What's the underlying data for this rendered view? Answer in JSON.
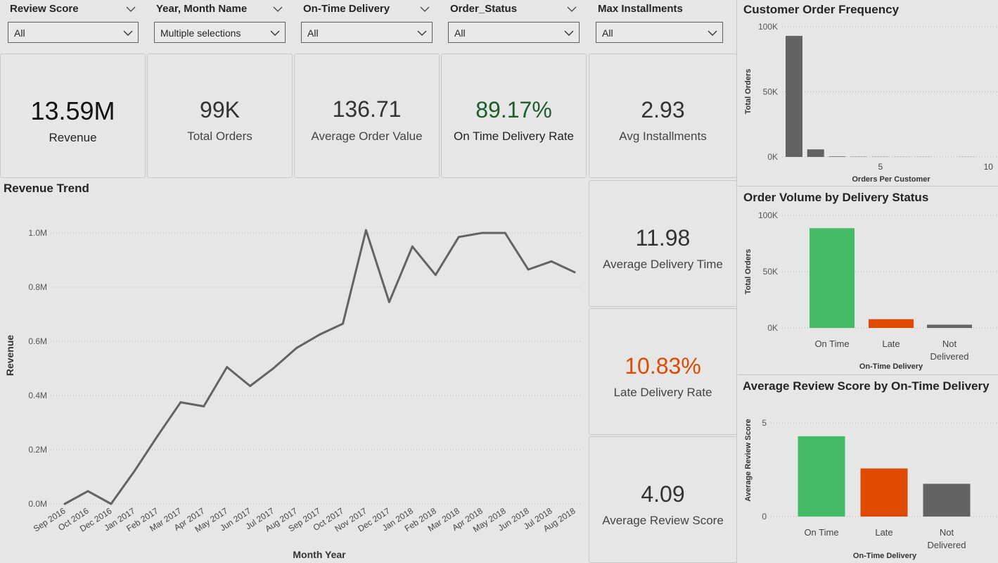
{
  "slicers": [
    {
      "title": "Review Score",
      "value": "All"
    },
    {
      "title": "Year, Month Name",
      "value": "Multiple selections"
    },
    {
      "title": "On-Time Delivery",
      "value": "All"
    },
    {
      "title": "Order_Status",
      "value": "All"
    },
    {
      "title": "Max Installments",
      "value": "All"
    }
  ],
  "kpis": {
    "revenue": {
      "value": "13.59M",
      "label": "Revenue"
    },
    "total_orders": {
      "value": "99K",
      "label": "Total Orders"
    },
    "aov": {
      "value": "136.71",
      "label": "Average Order Value"
    },
    "on_time_rate": {
      "value": "89.17%",
      "label": "On Time Delivery Rate",
      "color": "#1e5d2a"
    },
    "avg_installments": {
      "value": "2.93",
      "label": "Avg Installments"
    },
    "avg_delivery_time": {
      "value": "11.98",
      "label": "Average Delivery Time"
    },
    "late_rate": {
      "value": "10.83%",
      "label": "Late Delivery Rate",
      "color": "#e04a00"
    },
    "avg_review": {
      "value": "4.09",
      "label": "Average Review Score"
    }
  },
  "revenue_trend": {
    "title": "Revenue Trend",
    "chart_data": {
      "type": "line",
      "title": "Revenue Trend",
      "xlabel": "Month Year",
      "ylabel": "Revenue",
      "categories": [
        "Sep 2016",
        "Oct 2016",
        "Dec 2016",
        "Jan 2017",
        "Feb 2017",
        "Mar 2017",
        "Apr 2017",
        "May 2017",
        "Jun 2017",
        "Jul 2017",
        "Aug 2017",
        "Sep 2017",
        "Oct 2017",
        "Nov 2017",
        "Dec 2017",
        "Jan 2018",
        "Feb 2018",
        "Mar 2018",
        "Apr 2018",
        "May 2018",
        "Jun 2018",
        "Jul 2018",
        "Aug 2018"
      ],
      "values": [
        0.0,
        0.047,
        0.0,
        0.12,
        0.25,
        0.375,
        0.36,
        0.505,
        0.435,
        0.5,
        0.575,
        0.625,
        0.665,
        1.01,
        0.745,
        0.95,
        0.845,
        0.985,
        1.0,
        1.0,
        0.865,
        0.895,
        0.855
      ],
      "yticks": [
        "0.0M",
        "0.2M",
        "0.4M",
        "0.6M",
        "0.8M",
        "1.0M"
      ],
      "ylim": [
        0,
        1.0
      ],
      "grid": true,
      "color": "#636363"
    }
  },
  "customer_freq": {
    "title": "Customer Order Frequency",
    "chart_data": {
      "type": "bar",
      "title": "Customer Order Frequency",
      "xlabel": "Orders Per Customer",
      "ylabel": "Total Orders",
      "x": [
        1,
        2,
        3,
        4,
        5,
        6,
        7,
        9
      ],
      "values": [
        93000,
        5800,
        400,
        200,
        150,
        100,
        100,
        100
      ],
      "xticks": [
        "5",
        "10"
      ],
      "yticks": [
        "0K",
        "50K",
        "100K"
      ],
      "ylim": [
        0,
        100000
      ],
      "color": "#636363"
    }
  },
  "delivery_status": {
    "title": "Order Volume by Delivery Status",
    "chart_data": {
      "type": "bar",
      "title": "Order Volume by Delivery Status",
      "xlabel": "On-Time Delivery",
      "ylabel": "Total Orders",
      "categories": [
        "On Time",
        "Late",
        "Not Delivered"
      ],
      "category_lines": [
        [
          "On Time"
        ],
        [
          "Late"
        ],
        [
          "Not",
          "Delivered"
        ]
      ],
      "values": [
        88600,
        7800,
        2900
      ],
      "colors": [
        "#44bb66",
        "#e04a00",
        "#636363"
      ],
      "yticks": [
        "0K",
        "50K",
        "100K"
      ],
      "ylim": [
        0,
        100000
      ]
    }
  },
  "review_by_delivery": {
    "title": "Average Review Score by On-Time Delivery",
    "chart_data": {
      "type": "bar",
      "title": "Average Review Score by On-Time Delivery",
      "xlabel": "On-Time Delivery",
      "ylabel": "Average Review Score",
      "categories": [
        "On Time",
        "Late",
        "Not Delivered"
      ],
      "category_lines": [
        [
          "On Time"
        ],
        [
          "Late"
        ],
        [
          "Not",
          "Delivered"
        ]
      ],
      "values": [
        4.29,
        2.57,
        1.75
      ],
      "colors": [
        "#44bb66",
        "#e04a00",
        "#636363"
      ],
      "yticks": [
        "0",
        "5"
      ],
      "ylim": [
        0,
        5
      ]
    }
  }
}
